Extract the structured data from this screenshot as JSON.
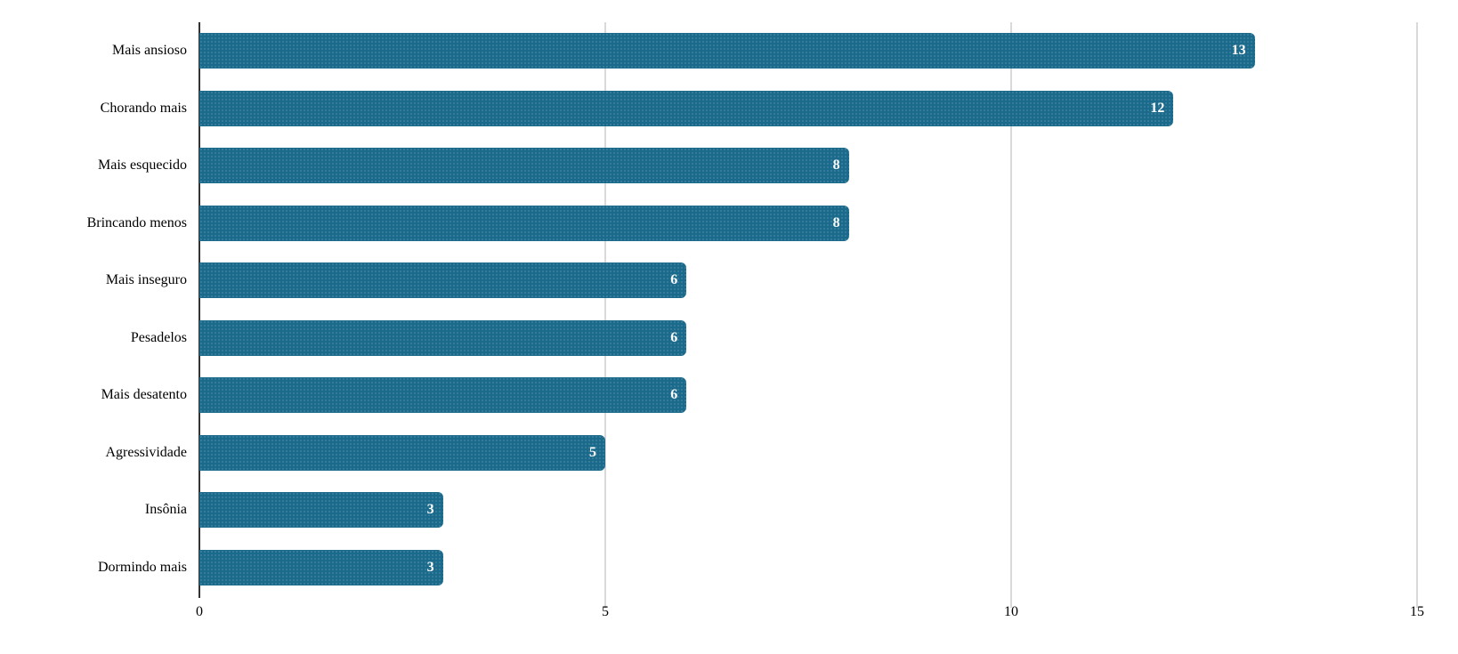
{
  "chart_data": {
    "type": "bar",
    "orientation": "horizontal",
    "title": "",
    "xlabel": "",
    "ylabel": "",
    "categories": [
      "Mais ansioso",
      "Chorando mais",
      "Mais esquecido",
      "Brincando menos",
      "Mais inseguro",
      "Pesadelos",
      "Mais desatento",
      "Agressividade",
      "Insônia",
      "Dormindo mais"
    ],
    "values": [
      13,
      12,
      8,
      8,
      6,
      6,
      6,
      5,
      3,
      3
    ],
    "xlim": [
      0,
      15
    ],
    "x_ticks": [
      0,
      5,
      10,
      15
    ],
    "grid": true,
    "legend": false,
    "value_labels_shown": true,
    "colors": {
      "bar": "#1a6a8c",
      "value_label": "#ffffff",
      "gridline": "#d9d9d9",
      "axis_line": "#333333",
      "text": "#000000",
      "background": "#ffffff"
    }
  }
}
